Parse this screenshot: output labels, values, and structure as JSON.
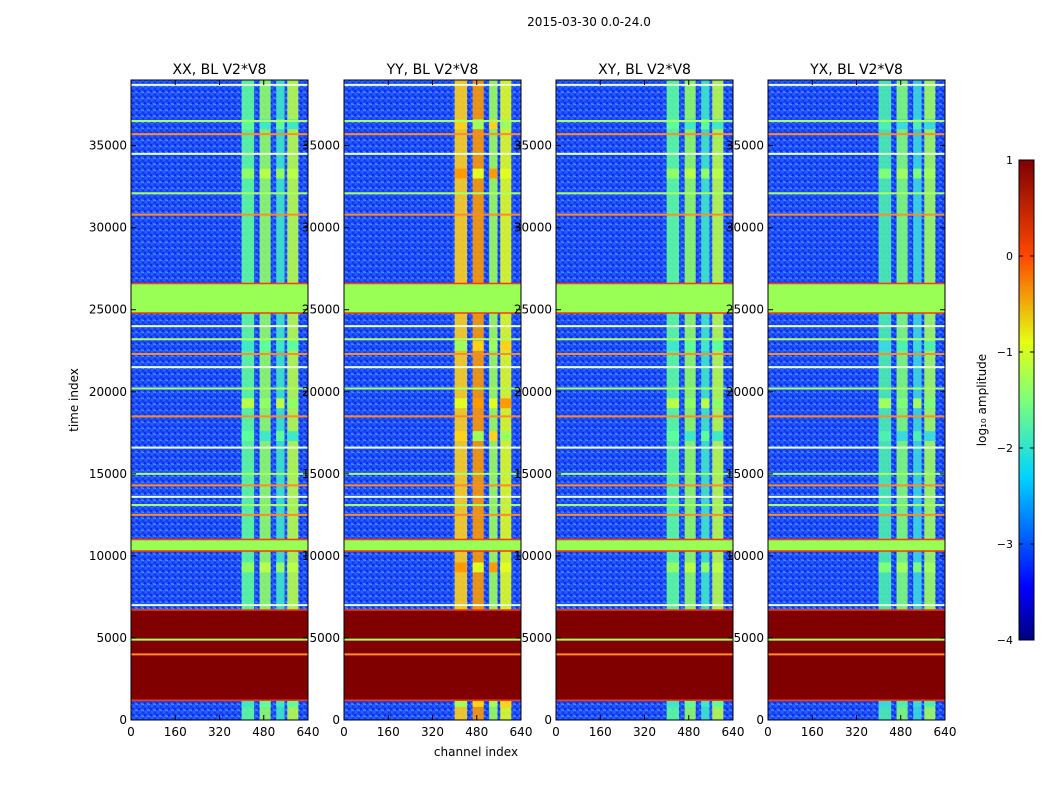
{
  "chart_data": {
    "type": "heatmap",
    "suptitle": "2015-03-30 0.0-24.0",
    "xlabel": "channel index",
    "ylabel": "time index",
    "xlim": [
      0,
      640
    ],
    "ylim": [
      0,
      39000
    ],
    "xticks": [
      0,
      160,
      320,
      480,
      640
    ],
    "yticks": [
      0,
      5000,
      10000,
      15000,
      20000,
      25000,
      30000,
      35000
    ],
    "panels": [
      {
        "title": "XX, BL V2*V8",
        "band": "strong"
      },
      {
        "title": "YY, BL V2*V8",
        "band": "hot"
      },
      {
        "title": "XY, BL V2*V8",
        "band": "strong"
      },
      {
        "title": "YX, BL V2*V8",
        "band": "medium"
      }
    ],
    "colorbar": {
      "label": "log₁₀ amplitude",
      "min": -4,
      "max": 1,
      "ticks": [
        1,
        0,
        -1,
        -2,
        -3,
        -4
      ],
      "tick_labels": [
        "1",
        "0",
        "−1",
        "−2",
        "−3",
        "−4"
      ],
      "colormap": "jet"
    },
    "band_edges_channels": [
      400,
      445,
      465,
      505,
      525,
      555,
      565,
      605
    ],
    "flagged_time_blocks": [
      {
        "start": 1200,
        "end": 6700,
        "log_amplitude": 1
      },
      {
        "start": 10300,
        "end": 11000,
        "log_amplitude": -1
      },
      {
        "start": 24800,
        "end": 26600,
        "log_amplitude": -1
      }
    ],
    "flagged_time_lines": [
      4000,
      4900,
      7000,
      12500,
      13100,
      13600,
      14300,
      15000,
      16600,
      18500,
      20200,
      21500,
      22300,
      23200,
      24000,
      30800,
      32100,
      34500,
      35700,
      36500,
      38700
    ]
  }
}
